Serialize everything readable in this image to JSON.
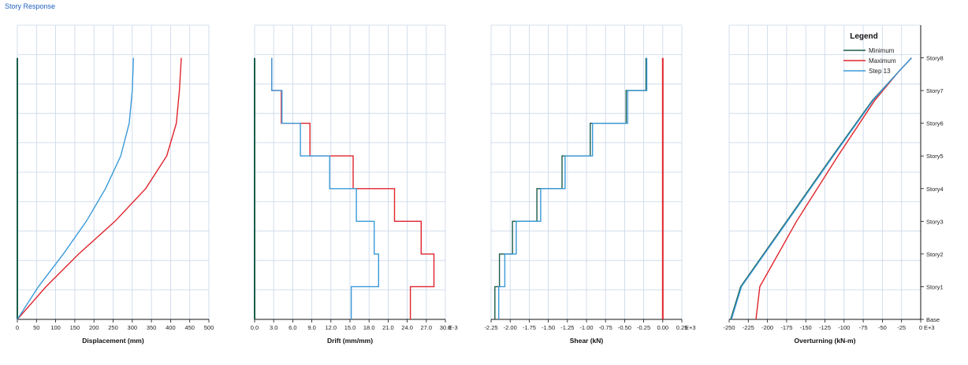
{
  "window": {
    "title": "Story Response"
  },
  "colors": {
    "minimum": "#1a5c4a",
    "maximum": "#e0242c",
    "step": "#3a9ad9",
    "grid": "#c9d6e8",
    "axis": "#111111"
  },
  "legend": {
    "title": "Legend",
    "entries": [
      {
        "label": "Minimum",
        "color": "#1a5c4a"
      },
      {
        "label": "Maximum",
        "color": "#e0242c"
      },
      {
        "label": "Step 13",
        "color": "#3a9ad9"
      }
    ]
  },
  "stories": [
    "Base",
    "Story1",
    "Story2",
    "Story3",
    "Story4",
    "Story5",
    "Story6",
    "Story7",
    "Story8"
  ],
  "chart_data": [
    {
      "type": "line",
      "id": "displacement",
      "xlabel": "Displacement (mm)",
      "xlim": [
        0,
        500
      ],
      "xticks": [
        0,
        50,
        100,
        150,
        200,
        250,
        300,
        350,
        400,
        450,
        500
      ],
      "xtick_labels": [
        "0",
        "50",
        "100",
        "150",
        "200",
        "250",
        "300",
        "350",
        "400",
        "450",
        "500"
      ],
      "x_suffix": "",
      "ylim": [
        0,
        9
      ],
      "series": [
        {
          "key": "minimum",
          "points": [
            [
              0,
              0
            ],
            [
              0,
              8
            ]
          ]
        },
        {
          "key": "maximum",
          "points": [
            [
              0,
              0
            ],
            [
              75,
              1
            ],
            [
              160,
              2
            ],
            [
              255,
              3
            ],
            [
              335,
              4
            ],
            [
              390,
              5
            ],
            [
              415,
              6
            ],
            [
              423,
              7
            ],
            [
              428,
              8
            ]
          ]
        },
        {
          "key": "step",
          "points": [
            [
              0,
              0
            ],
            [
              55,
              1
            ],
            [
              120,
              2
            ],
            [
              180,
              3
            ],
            [
              230,
              4
            ],
            [
              270,
              5
            ],
            [
              292,
              6
            ],
            [
              300,
              7
            ],
            [
              303,
              8
            ]
          ]
        }
      ]
    },
    {
      "type": "line",
      "id": "drift",
      "xlabel": "Drift (mm/mm)",
      "xlim": [
        0,
        30
      ],
      "xticks": [
        0,
        3,
        6,
        9,
        12,
        15,
        18,
        21,
        24,
        27,
        30
      ],
      "xtick_labels": [
        "0.0",
        "3.0",
        "6.0",
        "9.0",
        "12.0",
        "15.0",
        "18.0",
        "21.0",
        "24.0",
        "27.0",
        "30.0"
      ],
      "x_suffix": "E-3",
      "ylim": [
        0,
        9
      ],
      "series": [
        {
          "key": "minimum",
          "points": [
            [
              0,
              0
            ],
            [
              0,
              8
            ]
          ]
        },
        {
          "key": "maximum",
          "points": [
            [
              24.5,
              0
            ],
            [
              24.5,
              1
            ],
            [
              28.2,
              1
            ],
            [
              28.2,
              2
            ],
            [
              26.2,
              2
            ],
            [
              26.2,
              3
            ],
            [
              22,
              3
            ],
            [
              22,
              4
            ],
            [
              15.5,
              4
            ],
            [
              15.5,
              5
            ],
            [
              8.7,
              5
            ],
            [
              8.7,
              6
            ],
            [
              4.2,
              6
            ],
            [
              4.2,
              7
            ],
            [
              2.7,
              7
            ],
            [
              2.7,
              8
            ]
          ]
        },
        {
          "key": "step",
          "points": [
            [
              15.2,
              0
            ],
            [
              15.2,
              1
            ],
            [
              19.5,
              1
            ],
            [
              19.5,
              2
            ],
            [
              18.8,
              2
            ],
            [
              18.8,
              3
            ],
            [
              16,
              3
            ],
            [
              16,
              4
            ],
            [
              11.8,
              4
            ],
            [
              11.8,
              5
            ],
            [
              7.2,
              5
            ],
            [
              7.2,
              6
            ],
            [
              4.3,
              6
            ],
            [
              4.3,
              7
            ],
            [
              2.7,
              7
            ],
            [
              2.7,
              8
            ]
          ]
        }
      ]
    },
    {
      "type": "line",
      "id": "shear",
      "xlabel": "Shear (kN)",
      "xlim": [
        -2.25,
        0.25
      ],
      "xticks": [
        -2.25,
        -2,
        -1.75,
        -1.5,
        -1.25,
        -1,
        -0.75,
        -0.5,
        -0.25,
        0,
        0.25
      ],
      "xtick_labels": [
        "-2.25",
        "-2.00",
        "-1.75",
        "-1.50",
        "-1.25",
        "-1.00",
        "-0.75",
        "-0.50",
        "-0.25",
        "0.00",
        "0.25"
      ],
      "x_suffix": "E+3",
      "ylim": [
        0,
        9
      ],
      "series": [
        {
          "key": "maximum",
          "points": [
            [
              0,
              0
            ],
            [
              0,
              8
            ]
          ]
        },
        {
          "key": "minimum",
          "points": [
            [
              -2.2,
              0
            ],
            [
              -2.2,
              1
            ],
            [
              -2.14,
              1
            ],
            [
              -2.14,
              2
            ],
            [
              -1.97,
              2
            ],
            [
              -1.97,
              3
            ],
            [
              -1.65,
              3
            ],
            [
              -1.65,
              4
            ],
            [
              -1.32,
              4
            ],
            [
              -1.32,
              5
            ],
            [
              -0.95,
              5
            ],
            [
              -0.95,
              6
            ],
            [
              -0.48,
              6
            ],
            [
              -0.48,
              7
            ],
            [
              -0.22,
              7
            ],
            [
              -0.22,
              8
            ]
          ]
        },
        {
          "key": "step",
          "points": [
            [
              -2.15,
              0
            ],
            [
              -2.15,
              1
            ],
            [
              -2.07,
              1
            ],
            [
              -2.07,
              2
            ],
            [
              -1.92,
              2
            ],
            [
              -1.92,
              3
            ],
            [
              -1.6,
              3
            ],
            [
              -1.6,
              4
            ],
            [
              -1.28,
              4
            ],
            [
              -1.28,
              5
            ],
            [
              -0.92,
              5
            ],
            [
              -0.92,
              6
            ],
            [
              -0.46,
              6
            ],
            [
              -0.46,
              7
            ],
            [
              -0.21,
              7
            ],
            [
              -0.21,
              8
            ]
          ]
        }
      ]
    },
    {
      "type": "line",
      "id": "overturning",
      "xlabel": "Overturning (kN-m)",
      "xlim": [
        -250,
        0
      ],
      "xticks": [
        -250,
        -225,
        -200,
        -175,
        -150,
        -125,
        -100,
        -75,
        -50,
        -25,
        0
      ],
      "xtick_labels": [
        "-250",
        "-225",
        "-200",
        "-175",
        "-150",
        "-125",
        "-100",
        "-75",
        "-50",
        "-25",
        "0"
      ],
      "x_suffix": "E+3",
      "ylim": [
        0,
        9
      ],
      "series": [
        {
          "key": "minimum",
          "points": [
            [
              -248,
              0
            ],
            [
              -235,
              1
            ],
            [
              -175,
              3
            ],
            [
              -115,
              5
            ],
            [
              -63,
              6.7
            ],
            [
              -28,
              7.6
            ],
            [
              -12,
              8
            ]
          ]
        },
        {
          "key": "maximum",
          "points": [
            [
              -215,
              0
            ],
            [
              -210,
              1
            ],
            [
              -162,
              3
            ],
            [
              -108,
              5
            ],
            [
              -60,
              6.7
            ],
            [
              -28,
              7.6
            ],
            [
              -12,
              8
            ]
          ]
        },
        {
          "key": "step",
          "points": [
            [
              -247,
              0
            ],
            [
              -234,
              1
            ],
            [
              -174,
              3
            ],
            [
              -114,
              5
            ],
            [
              -62,
              6.7
            ],
            [
              -28,
              7.6
            ],
            [
              -12,
              8
            ]
          ]
        }
      ]
    }
  ]
}
